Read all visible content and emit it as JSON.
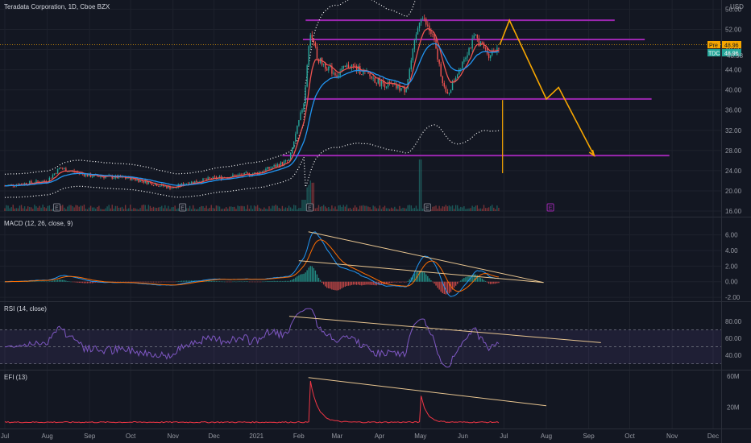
{
  "header": {
    "symbol_title": "Teradata Corporation, 1D, Cboe BZX",
    "currency": "USD"
  },
  "price_tags": {
    "pre": {
      "label": "Pre",
      "value": "48.96",
      "bg": "#f7a600"
    },
    "last": {
      "label": "TDC",
      "value": "48.96",
      "bg": "#26a69a"
    },
    "partial_value": "48.98"
  },
  "event_markers": [
    "E",
    "E",
    "E",
    "E",
    "E"
  ],
  "colors": {
    "background": "#131722",
    "up": "#26a69a",
    "down": "#ef5350",
    "ema_fast": "#ef5350",
    "ema_slow": "#2196f3",
    "bands": "#ffffff",
    "zones": "#9c27b0",
    "projection": "#f7a600",
    "trendline": "#e8c590",
    "macd_line": "#2196f3",
    "signal_line": "#ff6d00",
    "rsi_line": "#7e57c2",
    "efi_line": "#f23645"
  },
  "chart_data": [
    {
      "type": "candlestick",
      "title": "Teradata Corporation, 1D, Cboe BZX",
      "x_ticks": [
        "Jul",
        "Aug",
        "Sep",
        "Oct",
        "Nov",
        "Dec",
        "2021",
        "Feb",
        "Mar",
        "Apr",
        "May",
        "Jun",
        "Jul",
        "Aug",
        "Sep",
        "Oct",
        "Nov",
        "Dec"
      ],
      "y_ticks": [
        56.0,
        52.0,
        48.0,
        44.0,
        40.0,
        36.0,
        32.0,
        28.0,
        24.0,
        20.0,
        16.0
      ],
      "ylim": [
        16,
        57.5
      ],
      "close_series": [
        {
          "x": "2020-07-01",
          "y": 21.0
        },
        {
          "x": "2020-08-01",
          "y": 22.0
        },
        {
          "x": "2020-08-10",
          "y": 24.5
        },
        {
          "x": "2020-09-01",
          "y": 23.0
        },
        {
          "x": "2020-10-01",
          "y": 22.5
        },
        {
          "x": "2020-11-01",
          "y": 20.5
        },
        {
          "x": "2020-11-10",
          "y": 21.5
        },
        {
          "x": "2020-12-01",
          "y": 22.5
        },
        {
          "x": "2021-01-01",
          "y": 23.5
        },
        {
          "x": "2021-01-25",
          "y": 26.0
        },
        {
          "x": "2021-02-05",
          "y": 38.0
        },
        {
          "x": "2021-02-09",
          "y": 52.0
        },
        {
          "x": "2021-02-15",
          "y": 46.0
        },
        {
          "x": "2021-03-01",
          "y": 43.0
        },
        {
          "x": "2021-03-10",
          "y": 45.0
        },
        {
          "x": "2021-03-20",
          "y": 43.5
        },
        {
          "x": "2021-04-01",
          "y": 41.5
        },
        {
          "x": "2021-04-20",
          "y": 40.0
        },
        {
          "x": "2021-05-01",
          "y": 55.0
        },
        {
          "x": "2021-05-10",
          "y": 50.5
        },
        {
          "x": "2021-05-20",
          "y": 38.5
        },
        {
          "x": "2021-06-01",
          "y": 46.0
        },
        {
          "x": "2021-06-10",
          "y": 50.5
        },
        {
          "x": "2021-06-20",
          "y": 47.0
        },
        {
          "x": "2021-06-28",
          "y": 48.96
        }
      ],
      "horizontal_zones": [
        53.8,
        50.0,
        38.2,
        27.0
      ],
      "projection_path": [
        {
          "x": "2021-06-28",
          "y": 48.96
        },
        {
          "x": "2021-07-05",
          "y": 53.8
        },
        {
          "x": "2021-08-01",
          "y": 38.2
        },
        {
          "x": "2021-08-10",
          "y": 40.5
        },
        {
          "x": "2021-09-05",
          "y": 27.0
        }
      ],
      "vertical_marker": {
        "x": "2021-06-30",
        "y_range": [
          23.5,
          38.0
        ]
      }
    },
    {
      "type": "line",
      "title": "MACD (12, 26, close, 9)",
      "y_ticks": [
        6.0,
        4.0,
        2.0,
        0.0,
        -2.0
      ],
      "ylim": [
        -2.3,
        7.2
      ],
      "trendlines": [
        {
          "from": {
            "x": "2021-02-08",
            "y": 6.4
          },
          "to": {
            "x": "2021-07-30",
            "y": -0.1
          }
        },
        {
          "from": {
            "x": "2021-02-01",
            "y": 2.7
          },
          "to": {
            "x": "2021-07-30",
            "y": -0.1
          }
        }
      ]
    },
    {
      "type": "line",
      "title": "RSI (14, close)",
      "y_ticks": [
        80.0,
        60.0,
        40.0
      ],
      "ylim": [
        24,
        98
      ],
      "band": [
        30,
        70
      ],
      "trendlines": [
        {
          "from": {
            "x": "2021-01-25",
            "y": 86
          },
          "to": {
            "x": "2021-09-10",
            "y": 55
          }
        }
      ]
    },
    {
      "type": "line",
      "title": "EFI (13)",
      "y_ticks": [
        "60M",
        "20M"
      ],
      "trendlines": [
        {
          "from": {
            "x": "2021-02-08",
            "y": 58
          },
          "to": {
            "x": "2021-08-01",
            "y": 22
          }
        }
      ]
    }
  ]
}
